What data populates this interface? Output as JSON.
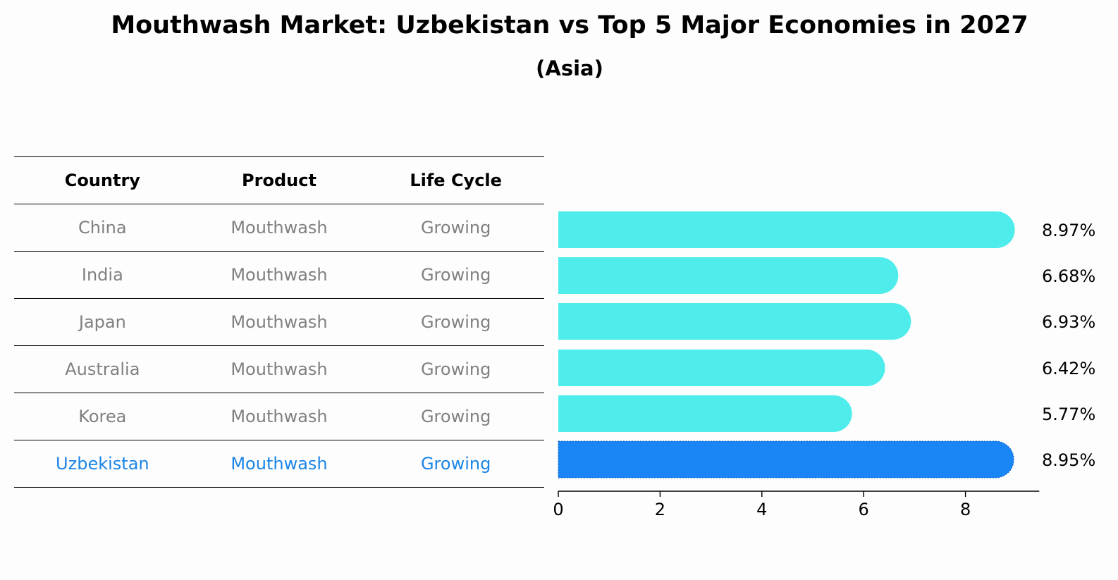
{
  "title": "Mouthwash Market: Uzbekistan vs Top 5 Major Economies in 2027",
  "subtitle": "(Asia)",
  "table": {
    "headers": [
      "Country",
      "Product",
      "Life Cycle"
    ],
    "rows": [
      {
        "country": "China",
        "product": "Mouthwash",
        "life_cycle": "Growing"
      },
      {
        "country": "India",
        "product": "Mouthwash",
        "life_cycle": "Growing"
      },
      {
        "country": "Japan",
        "product": "Mouthwash",
        "life_cycle": "Growing"
      },
      {
        "country": "Australia",
        "product": "Mouthwash",
        "life_cycle": "Growing"
      },
      {
        "country": "Korea",
        "product": "Mouthwash",
        "life_cycle": "Growing"
      },
      {
        "country": "Uzbekistan",
        "product": "Mouthwash",
        "life_cycle": "Growing"
      }
    ]
  },
  "colors": {
    "bar": "#4eeceb",
    "highlight": "#1a85f5",
    "table_text": "#808080",
    "table_highlight": "#1a85e6"
  },
  "chart_data": {
    "type": "bar",
    "orientation": "horizontal",
    "categories": [
      "China",
      "India",
      "Japan",
      "Australia",
      "Korea",
      "Uzbekistan"
    ],
    "values": [
      8.97,
      6.68,
      6.93,
      6.42,
      5.77,
      8.95
    ],
    "value_labels": [
      "8.97%",
      "6.68%",
      "6.93%",
      "6.42%",
      "5.77%",
      "8.95%"
    ],
    "highlight_category": "Uzbekistan",
    "xticks": [
      0,
      2,
      4,
      6,
      8
    ],
    "xlim": [
      0,
      9.45
    ],
    "grid": false
  }
}
